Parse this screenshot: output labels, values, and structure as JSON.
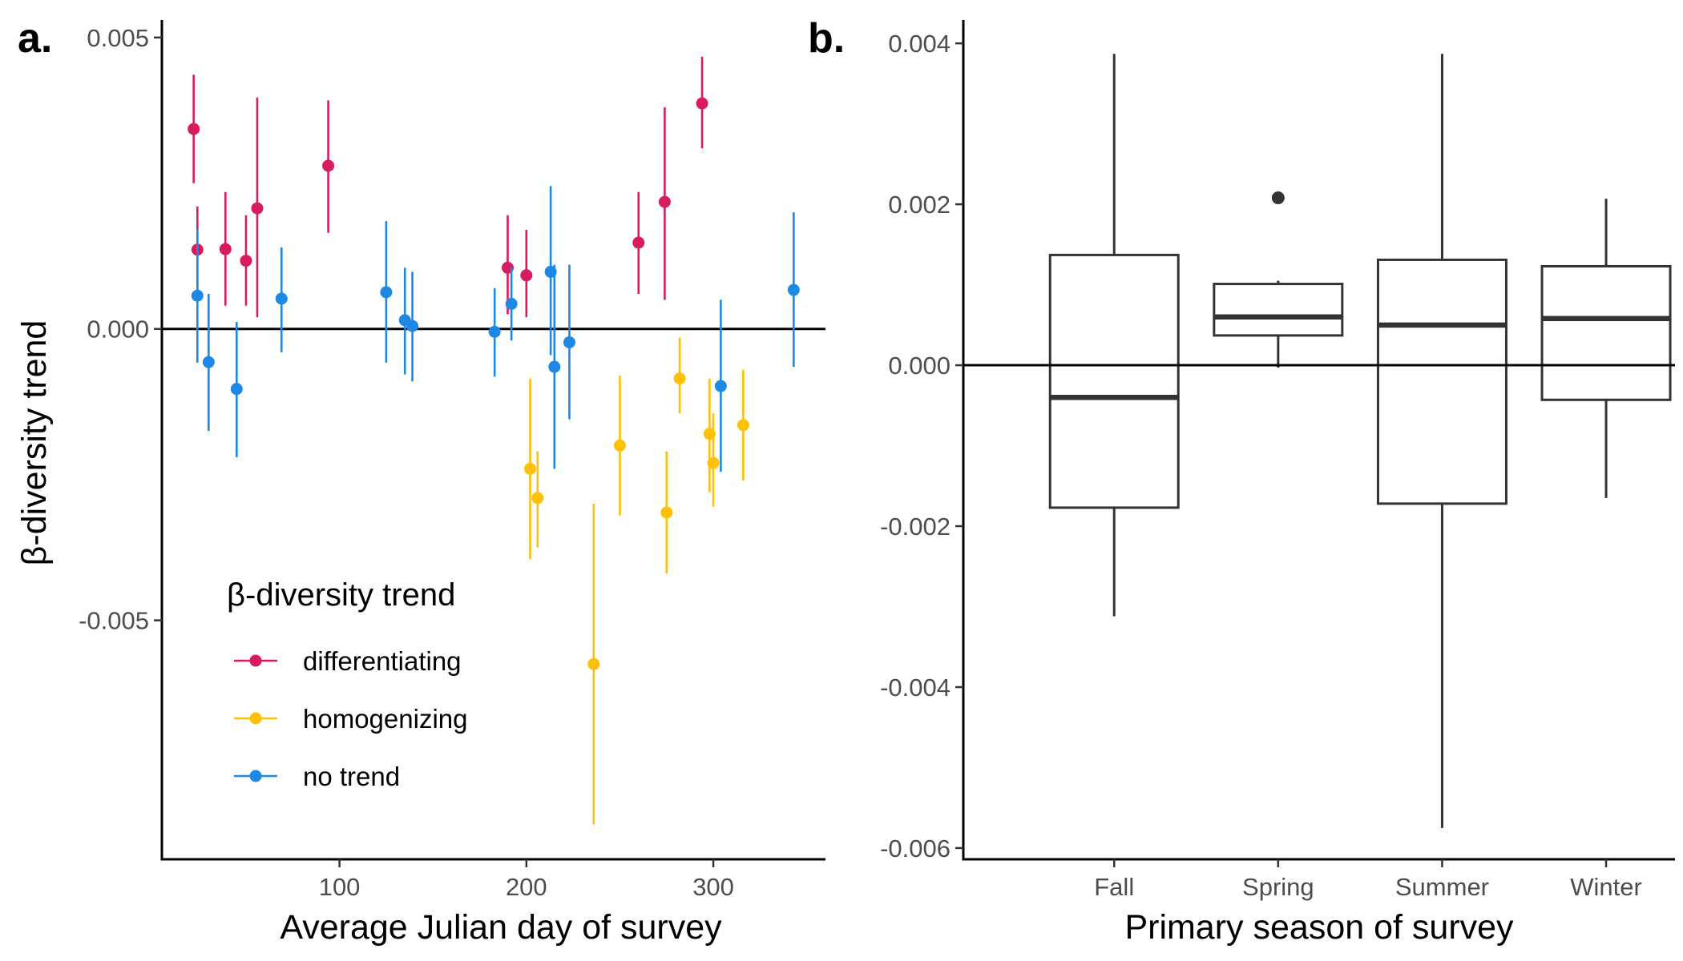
{
  "chart_data": [
    {
      "panel_label": "a.",
      "type": "scatter",
      "subtype": "point-range (estimate with interval)",
      "xlabel": "Average Julian day of survey",
      "ylabel": "β-diversity trend",
      "xlim": [
        5,
        360
      ],
      "ylim": [
        -0.0091,
        0.0053
      ],
      "x_ticks": [
        100,
        200,
        300
      ],
      "x_tick_labels": [
        "100",
        "200",
        "300"
      ],
      "y_ticks": [
        0.005,
        0.0,
        -0.005
      ],
      "y_tick_labels": [
        "0.005",
        "0.000",
        "-0.005"
      ],
      "reference_line_y": 0,
      "grid": false,
      "legend": {
        "title": "β-diversity trend",
        "position": "bottom-left inside",
        "entries": [
          "differentiating",
          "homogenizing",
          "no trend"
        ]
      },
      "series": [
        {
          "name": "differentiating",
          "color": "#D81B60",
          "points": [
            {
              "x": 22,
              "y": 0.00343,
              "lo": 0.0025,
              "hi": 0.00436
            },
            {
              "x": 24,
              "y": 0.00136,
              "lo": 0.0005,
              "hi": 0.0021
            },
            {
              "x": 39,
              "y": 0.00137,
              "lo": 0.0004,
              "hi": 0.00235
            },
            {
              "x": 50,
              "y": 0.00117,
              "lo": 0.0004,
              "hi": 0.00195
            },
            {
              "x": 56,
              "y": 0.00207,
              "lo": 0.0002,
              "hi": 0.00397
            },
            {
              "x": 94,
              "y": 0.0028,
              "lo": 0.00165,
              "hi": 0.00392
            },
            {
              "x": 190,
              "y": 0.00105,
              "lo": 0.00025,
              "hi": 0.00195
            },
            {
              "x": 200,
              "y": 0.00092,
              "lo": 0.0002,
              "hi": 0.0017
            },
            {
              "x": 260,
              "y": 0.00148,
              "lo": 0.0006,
              "hi": 0.00235
            },
            {
              "x": 274,
              "y": 0.00218,
              "lo": 0.0005,
              "hi": 0.0038
            },
            {
              "x": 294,
              "y": 0.00387,
              "lo": 0.0031,
              "hi": 0.00467
            }
          ]
        },
        {
          "name": "homogenizing",
          "color": "#FFC107",
          "points": [
            {
              "x": 202,
              "y": -0.0024,
              "lo": -0.00395,
              "hi": -0.00085
            },
            {
              "x": 206,
              "y": -0.0029,
              "lo": -0.00375,
              "hi": -0.0021
            },
            {
              "x": 236,
              "y": -0.00575,
              "lo": -0.0085,
              "hi": -0.003
            },
            {
              "x": 250,
              "y": -0.002,
              "lo": -0.0032,
              "hi": -0.0008
            },
            {
              "x": 275,
              "y": -0.00315,
              "lo": -0.0042,
              "hi": -0.0021
            },
            {
              "x": 282,
              "y": -0.00085,
              "lo": -0.00145,
              "hi": -0.00015
            },
            {
              "x": 298,
              "y": -0.0018,
              "lo": -0.0028,
              "hi": -0.00085
            },
            {
              "x": 300,
              "y": -0.0023,
              "lo": -0.00305,
              "hi": -0.00145
            },
            {
              "x": 316,
              "y": -0.00165,
              "lo": -0.0026,
              "hi": -0.0007
            }
          ]
        },
        {
          "name": "no trend",
          "color": "#1E88E5",
          "points": [
            {
              "x": 24,
              "y": 0.00057,
              "lo": -0.00058,
              "hi": 0.00172
            },
            {
              "x": 30,
              "y": -0.00057,
              "lo": -0.00175,
              "hi": 0.0006
            },
            {
              "x": 45,
              "y": -0.00103,
              "lo": -0.0022,
              "hi": 0.00012
            },
            {
              "x": 69,
              "y": 0.00052,
              "lo": -0.0004,
              "hi": 0.0014
            },
            {
              "x": 125,
              "y": 0.00063,
              "lo": -0.00058,
              "hi": 0.00185
            },
            {
              "x": 135,
              "y": 0.00015,
              "lo": -0.00078,
              "hi": 0.00105
            },
            {
              "x": 139,
              "y": 5e-05,
              "lo": -0.0009,
              "hi": 0.00098
            },
            {
              "x": 183,
              "y": -5e-05,
              "lo": -0.00082,
              "hi": 0.0007
            },
            {
              "x": 192,
              "y": 0.00043,
              "lo": -0.0002,
              "hi": 0.00105
            },
            {
              "x": 213,
              "y": 0.00098,
              "lo": -0.00045,
              "hi": 0.00245
            },
            {
              "x": 215,
              "y": -0.00065,
              "lo": -0.0024,
              "hi": 0.0011
            },
            {
              "x": 223,
              "y": -0.00023,
              "lo": -0.00155,
              "hi": 0.0011
            },
            {
              "x": 304,
              "y": -0.00098,
              "lo": -0.00245,
              "hi": 0.0005
            },
            {
              "x": 343,
              "y": 0.00067,
              "lo": -0.00065,
              "hi": 0.002
            }
          ]
        }
      ]
    },
    {
      "panel_label": "b.",
      "type": "boxplot",
      "xlabel": "Primary season of survey",
      "ylabel": "",
      "categories": [
        "Fall",
        "Spring",
        "Summer",
        "Winter"
      ],
      "ylim": [
        -0.00614,
        0.00429
      ],
      "y_ticks": [
        0.004,
        0.002,
        0.0,
        -0.002,
        -0.004,
        -0.006
      ],
      "y_tick_labels": [
        "0.004",
        "0.002",
        "0.000",
        "-0.002",
        "-0.004",
        "-0.006"
      ],
      "reference_line_y": 0,
      "grid": false,
      "boxes": [
        {
          "category": "Fall",
          "whisker_low": -0.00312,
          "q1": -0.00177,
          "median": -0.0004,
          "q3": 0.00137,
          "whisker_high": 0.00387,
          "outliers": []
        },
        {
          "category": "Spring",
          "whisker_low": -3e-05,
          "q1": 0.00037,
          "median": 0.0006,
          "q3": 0.00101,
          "whisker_high": 0.00105,
          "outliers": [
            0.00208
          ]
        },
        {
          "category": "Summer",
          "whisker_low": -0.00575,
          "q1": -0.00172,
          "median": 0.0005,
          "q3": 0.00131,
          "whisker_high": 0.00387,
          "outliers": []
        },
        {
          "category": "Winter",
          "whisker_low": -0.00165,
          "q1": -0.00043,
          "median": 0.00058,
          "q3": 0.00123,
          "whisker_high": 0.00207,
          "outliers": []
        }
      ]
    }
  ]
}
